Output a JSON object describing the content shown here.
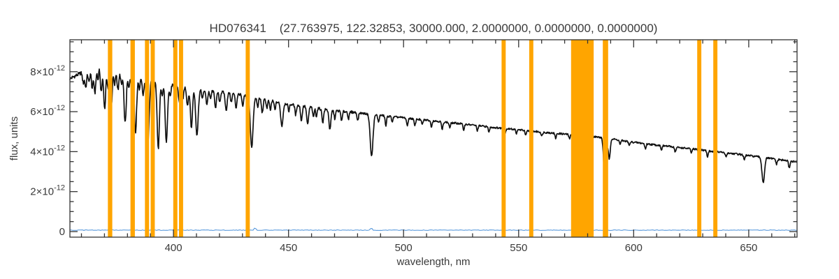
{
  "window": {
    "background": "#ffffff"
  },
  "chart_data": {
    "type": "line",
    "title": "HD076341    (27.763975, 122.32853, 30000.000, 2.0000000, 0.0000000, 0.0000000)",
    "xlabel": "wavelength, nm",
    "ylabel": "flux, units",
    "xlim": [
      355,
      671
    ],
    "ylim_e12": [
      -0.28,
      9.6
    ],
    "flux_unit_scale": "1e-12",
    "grid": false,
    "legend": "none",
    "xticks": {
      "major": [
        400,
        450,
        500,
        550,
        600,
        650
      ],
      "minor_step": 10
    },
    "yticks": {
      "major": [
        {
          "v": 0,
          "base": "0",
          "exp": ""
        },
        {
          "v": 2,
          "base": "2×10",
          "exp": "-12"
        },
        {
          "v": 4,
          "base": "4×10",
          "exp": "-12"
        },
        {
          "v": 6,
          "base": "6×10",
          "exp": "-12"
        },
        {
          "v": 8,
          "base": "8×10",
          "exp": "-12"
        }
      ],
      "minor_step": 0.5
    },
    "colors": {
      "spectrum": "#111111",
      "bands": "#ffa500",
      "reference_line": "#4a90d9",
      "axis": "#333333",
      "text": "#3a3a3a",
      "background": "#ffffff"
    },
    "spectrum": {
      "name": "stellar-spectrum-hd076341",
      "units": "1e-12 flux units vs nm",
      "noise_amplitude": 0.045,
      "continuum": [
        [
          355,
          7.65
        ],
        [
          360,
          7.95
        ],
        [
          364,
          8.2
        ],
        [
          368,
          8.45
        ],
        [
          371,
          8.3
        ],
        [
          375,
          8.1
        ],
        [
          380,
          8.0
        ],
        [
          385,
          7.85
        ],
        [
          390,
          7.7
        ],
        [
          395,
          7.5
        ],
        [
          400,
          7.35
        ],
        [
          405,
          7.25
        ],
        [
          410,
          7.15
        ],
        [
          415,
          7.08
        ],
        [
          420,
          7.0
        ],
        [
          425,
          6.92
        ],
        [
          430,
          6.85
        ],
        [
          435,
          6.72
        ],
        [
          440,
          6.6
        ],
        [
          445,
          6.48
        ],
        [
          450,
          6.38
        ],
        [
          455,
          6.3
        ],
        [
          460,
          6.22
        ],
        [
          465,
          6.12
        ],
        [
          470,
          6.05
        ],
        [
          475,
          6.0
        ],
        [
          480,
          5.95
        ],
        [
          485,
          5.88
        ],
        [
          490,
          5.82
        ],
        [
          495,
          5.75
        ],
        [
          500,
          5.7
        ],
        [
          505,
          5.63
        ],
        [
          510,
          5.58
        ],
        [
          515,
          5.52
        ],
        [
          520,
          5.45
        ],
        [
          525,
          5.4
        ],
        [
          530,
          5.33
        ],
        [
          535,
          5.27
        ],
        [
          540,
          5.2
        ],
        [
          545,
          5.15
        ],
        [
          550,
          5.1
        ],
        [
          555,
          5.03
        ],
        [
          560,
          4.98
        ],
        [
          565,
          4.93
        ],
        [
          570,
          4.88
        ],
        [
          575,
          4.83
        ],
        [
          580,
          4.78
        ],
        [
          585,
          4.72
        ],
        [
          590,
          4.65
        ],
        [
          595,
          4.55
        ],
        [
          600,
          4.47
        ],
        [
          605,
          4.4
        ],
        [
          610,
          4.33
        ],
        [
          615,
          4.27
        ],
        [
          620,
          4.2
        ],
        [
          625,
          4.14
        ],
        [
          630,
          4.08
        ],
        [
          635,
          4.0
        ],
        [
          640,
          3.94
        ],
        [
          645,
          3.88
        ],
        [
          650,
          3.8
        ],
        [
          655,
          3.73
        ],
        [
          660,
          3.65
        ],
        [
          665,
          3.57
        ],
        [
          671,
          3.48
        ]
      ],
      "absorption_lines": [
        [
          360.8,
          0.55,
          0.35
        ],
        [
          361.9,
          0.85,
          0.4
        ],
        [
          363.3,
          0.7,
          0.35
        ],
        [
          364.7,
          1.05,
          0.4
        ],
        [
          365.9,
          1.35,
          0.4
        ],
        [
          367.2,
          0.8,
          0.35
        ],
        [
          368.6,
          1.45,
          0.4
        ],
        [
          370.1,
          2.2,
          0.45
        ],
        [
          371.6,
          1.1,
          0.4
        ],
        [
          373.0,
          1.9,
          0.4
        ],
        [
          374.4,
          0.8,
          0.35
        ],
        [
          375.9,
          1.0,
          0.4
        ],
        [
          377.4,
          0.7,
          0.35
        ],
        [
          379.0,
          2.6,
          0.5
        ],
        [
          380.6,
          0.8,
          0.35
        ],
        [
          382.1,
          1.2,
          0.4
        ],
        [
          383.5,
          2.9,
          0.5
        ],
        [
          385.2,
          0.7,
          0.35
        ],
        [
          386.8,
          0.95,
          0.4
        ],
        [
          388.9,
          3.3,
          0.55
        ],
        [
          391.2,
          0.9,
          0.4
        ],
        [
          393.4,
          3.4,
          0.5
        ],
        [
          395.1,
          0.7,
          0.35
        ],
        [
          396.9,
          3.0,
          0.5
        ],
        [
          398.6,
          0.6,
          0.35
        ],
        [
          400.6,
          0.5,
          0.35
        ],
        [
          402.6,
          0.85,
          0.4
        ],
        [
          404.1,
          0.6,
          0.35
        ],
        [
          406.1,
          0.9,
          0.4
        ],
        [
          407.8,
          2.0,
          0.45
        ],
        [
          410.2,
          2.3,
          0.55
        ],
        [
          412.6,
          0.45,
          0.35
        ],
        [
          414.5,
          0.7,
          0.4
        ],
        [
          416.1,
          0.45,
          0.3
        ],
        [
          418.3,
          0.8,
          0.4
        ],
        [
          420.1,
          0.5,
          0.35
        ],
        [
          422.9,
          0.9,
          0.4
        ],
        [
          425.1,
          0.45,
          0.3
        ],
        [
          427.2,
          0.7,
          0.35
        ],
        [
          430.1,
          0.6,
          0.35
        ],
        [
          432.1,
          0.5,
          0.3
        ],
        [
          434.0,
          2.5,
          0.6
        ],
        [
          436.6,
          0.45,
          0.3
        ],
        [
          438.6,
          0.7,
          0.35
        ],
        [
          440.6,
          0.4,
          0.3
        ],
        [
          442.1,
          0.5,
          0.3
        ],
        [
          444.1,
          0.4,
          0.3
        ],
        [
          447.1,
          1.15,
          0.5
        ],
        [
          450.1,
          0.35,
          0.3
        ],
        [
          453.1,
          0.5,
          0.3
        ],
        [
          455.6,
          0.75,
          0.35
        ],
        [
          458.3,
          0.9,
          0.4
        ],
        [
          460.8,
          0.5,
          0.3
        ],
        [
          462.1,
          0.4,
          0.3
        ],
        [
          464.9,
          0.65,
          0.35
        ],
        [
          468.0,
          1.0,
          0.4
        ],
        [
          470.1,
          0.4,
          0.3
        ],
        [
          473.1,
          0.5,
          0.3
        ],
        [
          476.1,
          0.35,
          0.3
        ],
        [
          480.1,
          0.4,
          0.3
        ],
        [
          486.1,
          2.1,
          0.6
        ],
        [
          489.1,
          0.35,
          0.3
        ],
        [
          492.3,
          0.5,
          0.3
        ],
        [
          495.1,
          0.25,
          0.3
        ],
        [
          501.6,
          0.4,
          0.3
        ],
        [
          504.9,
          0.35,
          0.3
        ],
        [
          508.1,
          0.25,
          0.3
        ],
        [
          512.1,
          0.3,
          0.3
        ],
        [
          516.8,
          0.4,
          0.3
        ],
        [
          520.1,
          0.25,
          0.3
        ],
        [
          526.1,
          0.3,
          0.3
        ],
        [
          532.1,
          0.25,
          0.3
        ],
        [
          537.1,
          0.25,
          0.3
        ],
        [
          544.1,
          0.25,
          0.3
        ],
        [
          549.1,
          0.2,
          0.3
        ],
        [
          553.1,
          0.25,
          0.3
        ],
        [
          560.1,
          0.2,
          0.3
        ],
        [
          566.1,
          0.25,
          0.3
        ],
        [
          572.1,
          0.2,
          0.3
        ],
        [
          587.6,
          2.5,
          0.55
        ],
        [
          589.4,
          1.0,
          0.4
        ],
        [
          594.1,
          0.2,
          0.3
        ],
        [
          598.1,
          0.2,
          0.3
        ],
        [
          605.1,
          0.25,
          0.3
        ],
        [
          612.1,
          0.2,
          0.3
        ],
        [
          618.1,
          0.25,
          0.3
        ],
        [
          625.1,
          0.2,
          0.3
        ],
        [
          632.1,
          0.3,
          0.3
        ],
        [
          640.1,
          0.2,
          0.3
        ],
        [
          648.1,
          0.25,
          0.3
        ],
        [
          656.3,
          1.25,
          0.55
        ],
        [
          662.1,
          0.25,
          0.3
        ],
        [
          667.6,
          0.35,
          0.3
        ]
      ]
    },
    "masked_bands_nm": [
      [
        371.5,
        373.4
      ],
      [
        381.3,
        383.2
      ],
      [
        387.6,
        389.4
      ],
      [
        390.1,
        391.9
      ],
      [
        399.9,
        401.7
      ],
      [
        402.4,
        404.2
      ],
      [
        431.4,
        433.2
      ],
      [
        542.6,
        544.4
      ],
      [
        554.6,
        556.4
      ],
      [
        572.8,
        582.6
      ],
      [
        586.6,
        588.9
      ],
      [
        627.6,
        629.4
      ],
      [
        634.6,
        636.4
      ]
    ],
    "reference_line": {
      "name": "near-zero-reference-spectrum",
      "units": "1e-12",
      "level": 0.07,
      "spikes": [
        [
          372.5,
          0.3
        ],
        [
          403.3,
          0.18
        ],
        [
          435.5,
          0.15
        ],
        [
          486.0,
          0.12
        ]
      ]
    }
  }
}
